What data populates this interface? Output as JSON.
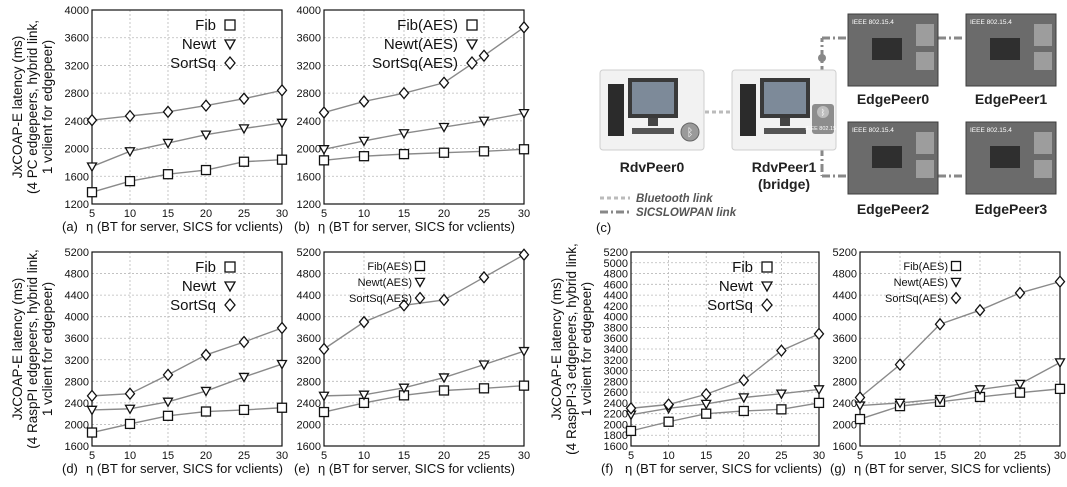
{
  "colors": {
    "line": "#8a8a8a",
    "marker": "#111111",
    "grid": "#b9b9b9",
    "link_bt": "#bbbbbb",
    "link_6lowpan": "#888888"
  },
  "y_axis_labels": [
    {
      "panels": [
        "a",
        "b"
      ],
      "lines": [
        "JxCOAP-E latency (ms)",
        "(4 PC edgepeers, hybrid link,",
        "1 vclient for edgepeer)"
      ]
    },
    {
      "panels": [
        "d",
        "e"
      ],
      "lines": [
        "JxCOAP-E latency (ms)",
        "(4 RaspPI edgepeers, hybrid link,",
        "1 vclient for edgepeer)"
      ]
    },
    {
      "panels": [
        "f",
        "g"
      ],
      "lines": [
        "JxCOAP-E latency (ms)",
        "(4 RaspPI-3 edgepeers, hybrid link,",
        "1 vclient for edgepeer)"
      ]
    }
  ],
  "chart_data": [
    {
      "id": "a",
      "type": "line",
      "panel_label": "(a)",
      "xlabel": "η (BT for server, SICS for vclients)",
      "ylabel": "",
      "x": [
        5,
        10,
        15,
        20,
        25,
        30
      ],
      "xlim": [
        5,
        30
      ],
      "ylim": [
        1200,
        4000
      ],
      "yticks": [
        1200,
        1600,
        2000,
        2400,
        2800,
        3200,
        3600,
        4000
      ],
      "grid": true,
      "legend_position": "top-right",
      "series": [
        {
          "name": "Fib",
          "marker": "square",
          "values": [
            1370,
            1530,
            1630,
            1690,
            1810,
            1840
          ]
        },
        {
          "name": "Newt",
          "marker": "triangle-down",
          "values": [
            1740,
            1960,
            2080,
            2200,
            2290,
            2370
          ]
        },
        {
          "name": "SortSq",
          "marker": "diamond",
          "values": [
            2410,
            2470,
            2530,
            2620,
            2720,
            2840
          ]
        }
      ]
    },
    {
      "id": "b",
      "type": "line",
      "panel_label": "(b)",
      "xlabel": "η (BT for server, SICS for vclients)",
      "ylabel": "",
      "x": [
        5,
        10,
        15,
        20,
        25,
        30
      ],
      "xlim": [
        5,
        30
      ],
      "ylim": [
        1200,
        4000
      ],
      "yticks": [
        1200,
        1600,
        2000,
        2400,
        2800,
        3200,
        3600,
        4000
      ],
      "grid": true,
      "legend_position": "top-right",
      "series": [
        {
          "name": "Fib(AES)",
          "marker": "square",
          "values": [
            1830,
            1890,
            1920,
            1940,
            1960,
            1990
          ]
        },
        {
          "name": "Newt(AES)",
          "marker": "triangle-down",
          "values": [
            1990,
            2110,
            2220,
            2310,
            2400,
            2510
          ]
        },
        {
          "name": "SortSq(AES)",
          "marker": "diamond",
          "values": [
            2520,
            2680,
            2800,
            2950,
            3340,
            3750
          ]
        }
      ]
    },
    {
      "id": "d",
      "type": "line",
      "panel_label": "(d)",
      "xlabel": "η (BT for server, SICS for vclients)",
      "ylabel": "",
      "x": [
        5,
        10,
        15,
        20,
        25,
        30
      ],
      "xlim": [
        5,
        30
      ],
      "ylim": [
        1600,
        5200
      ],
      "yticks": [
        1600,
        2000,
        2400,
        2800,
        3200,
        3600,
        4000,
        4400,
        4800,
        5200
      ],
      "grid": true,
      "legend_position": "top-right",
      "series": [
        {
          "name": "Fib",
          "marker": "square",
          "values": [
            1850,
            2010,
            2160,
            2240,
            2270,
            2310
          ]
        },
        {
          "name": "Newt",
          "marker": "triangle-down",
          "values": [
            2270,
            2290,
            2420,
            2620,
            2880,
            3120
          ]
        },
        {
          "name": "SortSq",
          "marker": "diamond",
          "values": [
            2530,
            2570,
            2920,
            3290,
            3530,
            3790
          ]
        }
      ]
    },
    {
      "id": "e",
      "type": "line",
      "panel_label": "(e)",
      "xlabel": "η (BT for server, SICS for vclients)",
      "ylabel": "",
      "x": [
        5,
        10,
        15,
        20,
        25,
        30
      ],
      "xlim": [
        5,
        30
      ],
      "ylim": [
        1600,
        5200
      ],
      "yticks": [
        1600,
        2000,
        2400,
        2800,
        3200,
        3600,
        4000,
        4400,
        4800,
        5200
      ],
      "grid": true,
      "legend_position": "top-left",
      "series": [
        {
          "name": "Fib(AES)",
          "marker": "square",
          "values": [
            2230,
            2400,
            2540,
            2630,
            2670,
            2720
          ]
        },
        {
          "name": "Newt(AES)",
          "marker": "triangle-down",
          "values": [
            2530,
            2550,
            2680,
            2870,
            3110,
            3360
          ]
        },
        {
          "name": "SortSq(AES)",
          "marker": "diamond",
          "values": [
            3400,
            3900,
            4210,
            4310,
            4730,
            5150
          ]
        }
      ]
    },
    {
      "id": "f",
      "type": "line",
      "panel_label": "(f)",
      "xlabel": "η (BT for server, SICS for vclients)",
      "ylabel": "",
      "x": [
        5,
        10,
        15,
        20,
        25,
        30
      ],
      "xlim": [
        5,
        30
      ],
      "ylim": [
        1600,
        5200
      ],
      "yticks": [
        1600,
        1800,
        2000,
        2200,
        2400,
        2600,
        2800,
        3000,
        3200,
        3400,
        3600,
        3800,
        4000,
        4200,
        4400,
        4600,
        4800,
        5000,
        5200
      ],
      "grid": true,
      "legend_position": "top-right",
      "series": [
        {
          "name": "Fib",
          "marker": "square",
          "values": [
            1880,
            2050,
            2200,
            2250,
            2280,
            2400
          ]
        },
        {
          "name": "Newt",
          "marker": "triangle-down",
          "values": [
            2180,
            2300,
            2380,
            2500,
            2570,
            2650
          ]
        },
        {
          "name": "SortSq",
          "marker": "diamond",
          "values": [
            2300,
            2370,
            2560,
            2820,
            3370,
            3680
          ]
        }
      ]
    },
    {
      "id": "g",
      "type": "line",
      "panel_label": "(g)",
      "xlabel": "η (BT for server, SICS for vclients)",
      "ylabel": "",
      "x": [
        5,
        10,
        15,
        20,
        25,
        30
      ],
      "xlim": [
        5,
        30
      ],
      "ylim": [
        1600,
        5200
      ],
      "yticks": [
        1600,
        2000,
        2400,
        2800,
        3200,
        3600,
        4000,
        4400,
        4800,
        5200
      ],
      "grid": true,
      "legend_position": "top-left",
      "series": [
        {
          "name": "Fib(AES)",
          "marker": "square",
          "values": [
            2100,
            2340,
            2420,
            2510,
            2590,
            2660
          ]
        },
        {
          "name": "Newt(AES)",
          "marker": "triangle-down",
          "values": [
            2350,
            2400,
            2470,
            2650,
            2750,
            3150
          ]
        },
        {
          "name": "SortSq(AES)",
          "marker": "diamond",
          "values": [
            2500,
            3110,
            3860,
            4120,
            4440,
            4650
          ]
        }
      ]
    }
  ],
  "diagram": {
    "panel_label": "(c)",
    "nodes": [
      {
        "id": "rdv0",
        "label": "RdvPeer0",
        "kind": "pc",
        "badges": [
          "bluetooth"
        ]
      },
      {
        "id": "rdv1",
        "label": "RdvPeer1\n(bridge)",
        "kind": "pc",
        "badges": [
          "bluetooth",
          "ieee802154"
        ]
      },
      {
        "id": "edge0",
        "label": "EdgePeer0",
        "kind": "board",
        "badges": [
          "ieee802154"
        ]
      },
      {
        "id": "edge1",
        "label": "EdgePeer1",
        "kind": "board",
        "badges": [
          "ieee802154"
        ]
      },
      {
        "id": "edge2",
        "label": "EdgePeer2",
        "kind": "board",
        "badges": [
          "ieee802154"
        ]
      },
      {
        "id": "edge3",
        "label": "EdgePeer3",
        "kind": "board",
        "badges": [
          "ieee802154"
        ]
      }
    ],
    "badge_text": {
      "ieee802154": "IEEE 802.15.4"
    },
    "links": [
      {
        "from": "rdv0",
        "to": "rdv1",
        "type": "bluetooth"
      },
      {
        "from": "rdv1",
        "to": "edge0",
        "type": "6lowpan"
      },
      {
        "from": "rdv1",
        "to": "edge2",
        "type": "6lowpan"
      },
      {
        "from": "edge0",
        "to": "edge1",
        "type": "6lowpan"
      },
      {
        "from": "edge2",
        "to": "edge3",
        "type": "6lowpan"
      }
    ],
    "legend": [
      {
        "type": "bluetooth",
        "label": "Bluetooth link"
      },
      {
        "type": "6lowpan",
        "label": "SICSLOWPAN link"
      }
    ]
  }
}
